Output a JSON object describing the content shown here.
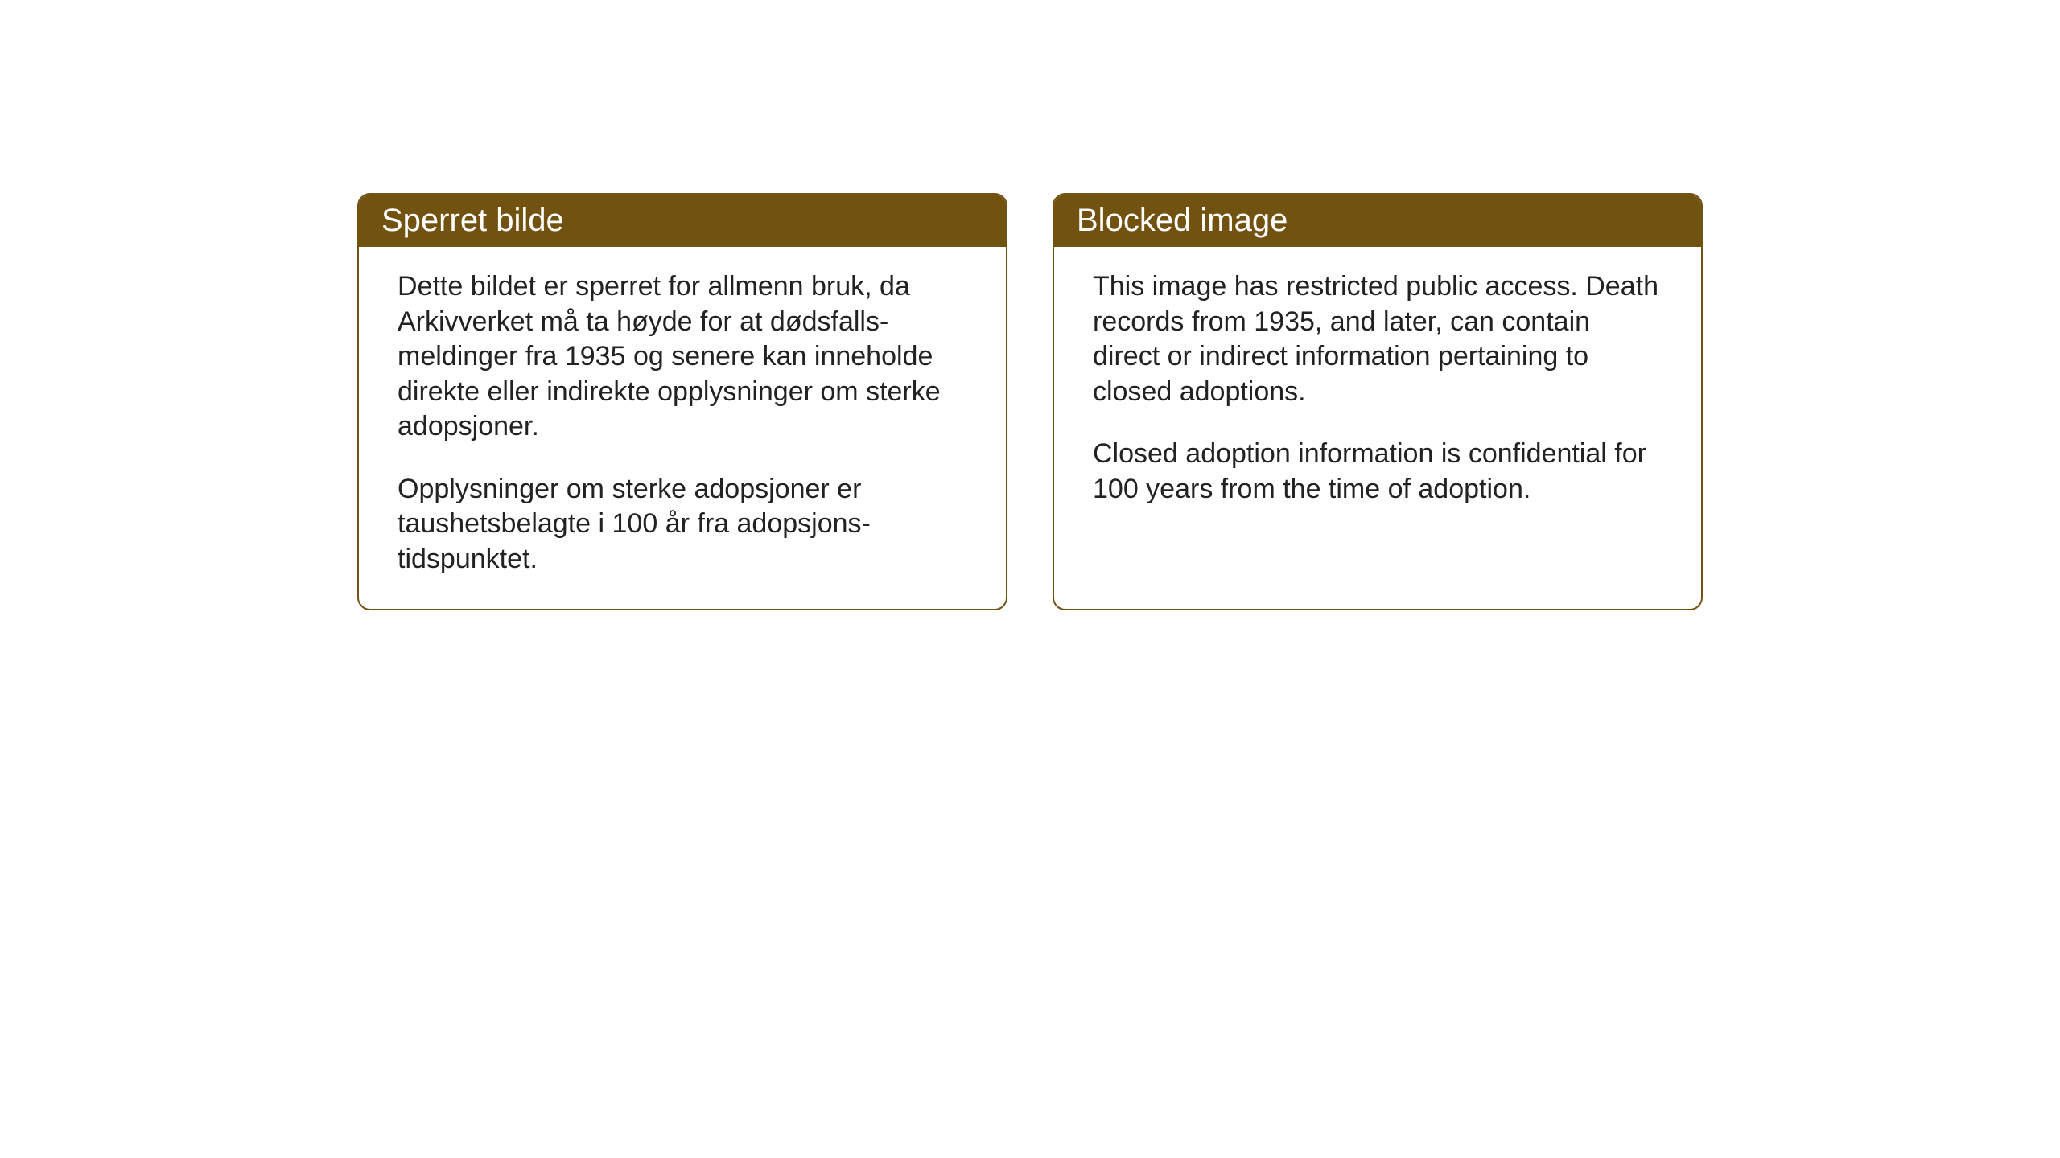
{
  "notices": {
    "norwegian": {
      "title": "Sperret bilde",
      "paragraph1": "Dette bildet er sperret for allmenn bruk, da Arkivverket må ta høyde for at dødsfalls-meldinger fra 1935 og senere kan inneholde direkte eller indirekte opplysninger om sterke adopsjoner.",
      "paragraph2": "Opplysninger om sterke adopsjoner er taushetsbelagte i 100 år fra adopsjons-tidspunktet."
    },
    "english": {
      "title": "Blocked image",
      "paragraph1": "This image has restricted public access. Death records from 1935, and later, can contain direct or indirect information pertaining to closed adoptions.",
      "paragraph2": "Closed adoption information is confidential for 100 years from the time of adoption."
    }
  },
  "styling": {
    "header_background": "#715211",
    "header_text_color": "#ffffff",
    "border_color": "#715211",
    "body_background": "#ffffff",
    "body_text_color": "#222222",
    "header_fontsize": 40,
    "body_fontsize": 34,
    "border_radius": 16,
    "border_width": 2
  }
}
